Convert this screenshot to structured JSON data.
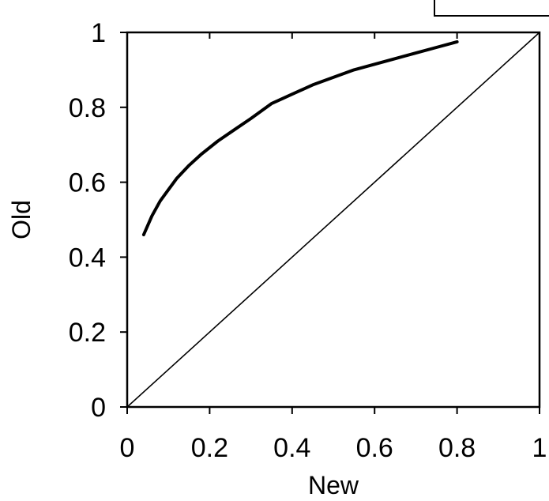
{
  "chart_data": {
    "type": "line",
    "title": "",
    "xlabel": "New",
    "ylabel": "Old",
    "xlim": [
      0,
      1
    ],
    "ylim": [
      0,
      1
    ],
    "xticks": [
      "0",
      "0.2",
      "0.4",
      "0.6",
      "0.8",
      "1"
    ],
    "yticks": [
      "0",
      "0.2",
      "0.4",
      "0.6",
      "0.8",
      "1"
    ],
    "grid": false,
    "legend": "none",
    "series": [
      {
        "x": [
          0.04,
          0.06,
          0.08,
          0.1,
          0.12,
          0.15,
          0.18,
          0.22,
          0.26,
          0.3,
          0.35,
          0.4,
          0.45,
          0.5,
          0.55,
          0.6,
          0.65,
          0.7,
          0.75,
          0.8
        ],
        "y": [
          0.46,
          0.51,
          0.55,
          0.58,
          0.61,
          0.645,
          0.675,
          0.71,
          0.74,
          0.77,
          0.81,
          0.835,
          0.86,
          0.88,
          0.9,
          0.915,
          0.93,
          0.945,
          0.96,
          0.975
        ],
        "color": "#000000"
      },
      {
        "x": [
          0,
          1
        ],
        "y": [
          0,
          1
        ],
        "color": "#000000"
      }
    ]
  }
}
